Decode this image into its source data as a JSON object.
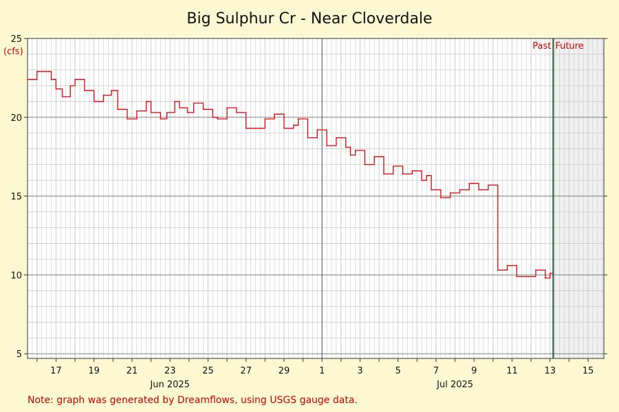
{
  "chart_data": {
    "type": "line",
    "title": "Big Sulphur Cr - Near Cloverdale",
    "ylabel": "(cfs)",
    "xlabel": "",
    "ylim": [
      4.7,
      25
    ],
    "y_ticks": [
      5,
      10,
      15,
      20,
      25
    ],
    "x_range_days": [
      "2025-06-15T12:00",
      "2025-07-15T20:00"
    ],
    "x_tick_labels": [
      {
        "date": "2025-06-17",
        "label": "17"
      },
      {
        "date": "2025-06-19",
        "label": "19"
      },
      {
        "date": "2025-06-21",
        "label": "21"
      },
      {
        "date": "2025-06-23",
        "label": "23"
      },
      {
        "date": "2025-06-25",
        "label": "25"
      },
      {
        "date": "2025-06-27",
        "label": "27"
      },
      {
        "date": "2025-06-29",
        "label": "29"
      },
      {
        "date": "2025-07-01",
        "label": "1"
      },
      {
        "date": "2025-07-03",
        "label": "3"
      },
      {
        "date": "2025-07-05",
        "label": "5"
      },
      {
        "date": "2025-07-07",
        "label": "7"
      },
      {
        "date": "2025-07-09",
        "label": "9"
      },
      {
        "date": "2025-07-11",
        "label": "11"
      },
      {
        "date": "2025-07-13",
        "label": "13"
      },
      {
        "date": "2025-07-15",
        "label": "15"
      }
    ],
    "month_labels": [
      {
        "date": "2025-06-23",
        "label": "Jun 2025"
      },
      {
        "date": "2025-07-08",
        "label": "Jul 2025"
      }
    ],
    "month_boundary": "2025-07-01",
    "now": "2025-07-13T04:00",
    "past_label": "Past",
    "future_label": "Future",
    "grid": true,
    "colors": {
      "line": "#dd0000",
      "now_line": "#1e5a3c",
      "future_shade": "#f0f0f0",
      "grid": "#c8c8c8",
      "grid_major": "#808080"
    },
    "series": [
      {
        "x": [
          "2025-06-15T12:00",
          "2025-06-15T22:00",
          "2025-06-16T00:00",
          "2025-06-16T08:00",
          "2025-06-16T18:00",
          "2025-06-17T00:00",
          "2025-06-17T08:00",
          "2025-06-17T18:00",
          "2025-06-18T00:00",
          "2025-06-18T06:00",
          "2025-06-18T12:00",
          "2025-06-19T00:00",
          "2025-06-19T12:00",
          "2025-06-19T22:00",
          "2025-06-20T06:00",
          "2025-06-20T18:00",
          "2025-06-21T06:00",
          "2025-06-21T18:00",
          "2025-06-22T00:00",
          "2025-06-22T12:00",
          "2025-06-22T20:00",
          "2025-06-23T06:00",
          "2025-06-23T12:00",
          "2025-06-23T22:00",
          "2025-06-24T06:00",
          "2025-06-24T18:00",
          "2025-06-25T06:00",
          "2025-06-25T12:00",
          "2025-06-26T00:00",
          "2025-06-26T12:00",
          "2025-06-27T00:00",
          "2025-06-27T12:00",
          "2025-06-28T00:00",
          "2025-06-28T12:00",
          "2025-06-29T00:00",
          "2025-06-29T12:00",
          "2025-06-29T18:00",
          "2025-06-30T06:00",
          "2025-06-30T18:00",
          "2025-07-01T06:00",
          "2025-07-01T18:00",
          "2025-07-02T06:00",
          "2025-07-02T12:00",
          "2025-07-02T18:00",
          "2025-07-03T06:00",
          "2025-07-03T18:00",
          "2025-07-04T06:00",
          "2025-07-04T18:00",
          "2025-07-05T06:00",
          "2025-07-05T12:00",
          "2025-07-05T18:00",
          "2025-07-06T06:00",
          "2025-07-06T12:00",
          "2025-07-06T18:00",
          "2025-07-06T22:00",
          "2025-07-07T06:00",
          "2025-07-07T12:00",
          "2025-07-07T18:00",
          "2025-07-08T06:00",
          "2025-07-08T18:00",
          "2025-07-09T06:00",
          "2025-07-09T18:00",
          "2025-07-10T06:00",
          "2025-07-10T18:00",
          "2025-07-11T06:00",
          "2025-07-11T18:00",
          "2025-07-12T06:00",
          "2025-07-12T18:00",
          "2025-07-13T00:00",
          "2025-07-13T04:00"
        ],
        "y": [
          22.4,
          22.4,
          22.9,
          22.9,
          22.4,
          21.8,
          21.3,
          22.0,
          22.4,
          22.4,
          21.7,
          21.0,
          21.4,
          21.7,
          20.5,
          19.9,
          20.4,
          21.0,
          20.3,
          19.9,
          20.3,
          21.0,
          20.6,
          20.3,
          20.9,
          20.5,
          20.0,
          19.9,
          20.6,
          20.3,
          19.3,
          19.3,
          19.9,
          20.2,
          19.3,
          19.5,
          19.9,
          18.7,
          19.2,
          18.2,
          18.7,
          18.1,
          17.6,
          17.9,
          17.0,
          17.5,
          16.4,
          16.9,
          16.4,
          16.4,
          16.6,
          16.0,
          16.3,
          15.4,
          15.4,
          14.9,
          14.9,
          15.2,
          15.4,
          15.8,
          15.4,
          15.7,
          10.3,
          10.6,
          9.9,
          9.9,
          10.3,
          9.8,
          10.1,
          9.3
        ]
      }
    ]
  },
  "note": "Note: graph was generated by Dreamflows, using USGS gauge data."
}
